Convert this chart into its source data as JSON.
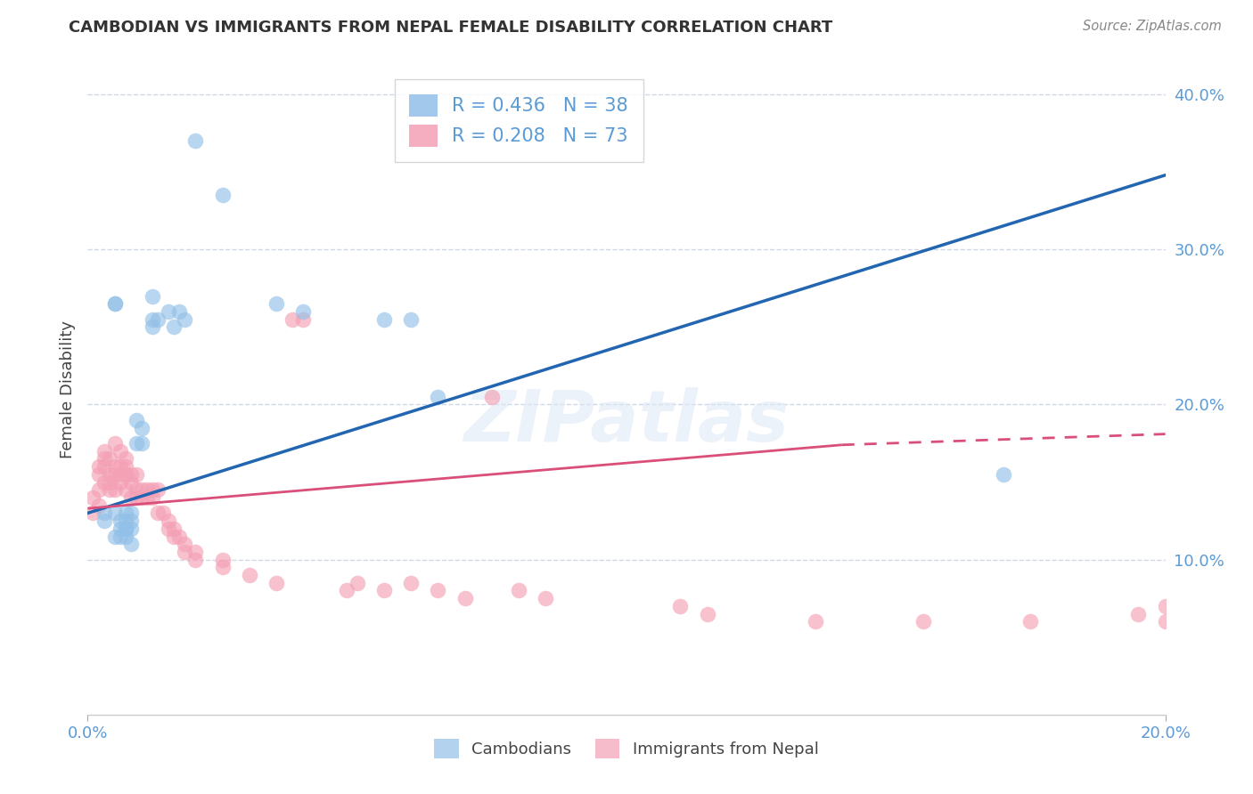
{
  "title": "CAMBODIAN VS IMMIGRANTS FROM NEPAL FEMALE DISABILITY CORRELATION CHART",
  "source": "Source: ZipAtlas.com",
  "ylabel": "Female Disability",
  "xlim": [
    0.0,
    0.2
  ],
  "ylim": [
    0.0,
    0.42
  ],
  "yticks": [
    0.1,
    0.2,
    0.3,
    0.4
  ],
  "xticks": [
    0.0,
    0.2
  ],
  "xtick_labels": [
    "0.0%",
    "20.0%"
  ],
  "ytick_labels": [
    "10.0%",
    "20.0%",
    "30.0%",
    "40.0%"
  ],
  "grid_yticks": [
    0.1,
    0.2,
    0.3,
    0.4
  ],
  "cambodian_color": "#92c0e8",
  "nepal_color": "#f4a0b5",
  "cambodian_line_color": "#2265b0",
  "nepal_line_color": "#d94f7a",
  "background_color": "#ffffff",
  "grid_color": "#d0d8e8",
  "cambodian_scatter": [
    [
      0.003,
      0.13
    ],
    [
      0.003,
      0.125
    ],
    [
      0.005,
      0.265
    ],
    [
      0.005,
      0.265
    ],
    [
      0.005,
      0.13
    ],
    [
      0.005,
      0.115
    ],
    [
      0.006,
      0.125
    ],
    [
      0.006,
      0.12
    ],
    [
      0.006,
      0.115
    ],
    [
      0.007,
      0.125
    ],
    [
      0.007,
      0.12
    ],
    [
      0.007,
      0.13
    ],
    [
      0.007,
      0.12
    ],
    [
      0.007,
      0.115
    ],
    [
      0.008,
      0.125
    ],
    [
      0.008,
      0.12
    ],
    [
      0.008,
      0.11
    ],
    [
      0.008,
      0.13
    ],
    [
      0.009,
      0.175
    ],
    [
      0.009,
      0.19
    ],
    [
      0.01,
      0.175
    ],
    [
      0.01,
      0.185
    ],
    [
      0.012,
      0.27
    ],
    [
      0.012,
      0.255
    ],
    [
      0.012,
      0.25
    ],
    [
      0.013,
      0.255
    ],
    [
      0.015,
      0.26
    ],
    [
      0.016,
      0.25
    ],
    [
      0.017,
      0.26
    ],
    [
      0.018,
      0.255
    ],
    [
      0.02,
      0.37
    ],
    [
      0.025,
      0.335
    ],
    [
      0.035,
      0.265
    ],
    [
      0.04,
      0.26
    ],
    [
      0.055,
      0.255
    ],
    [
      0.06,
      0.255
    ],
    [
      0.065,
      0.205
    ],
    [
      0.17,
      0.155
    ]
  ],
  "nepal_scatter": [
    [
      0.001,
      0.13
    ],
    [
      0.001,
      0.14
    ],
    [
      0.002,
      0.155
    ],
    [
      0.002,
      0.16
    ],
    [
      0.002,
      0.145
    ],
    [
      0.002,
      0.135
    ],
    [
      0.003,
      0.15
    ],
    [
      0.003,
      0.16
    ],
    [
      0.003,
      0.165
    ],
    [
      0.003,
      0.17
    ],
    [
      0.004,
      0.145
    ],
    [
      0.004,
      0.15
    ],
    [
      0.004,
      0.155
    ],
    [
      0.004,
      0.165
    ],
    [
      0.005,
      0.145
    ],
    [
      0.005,
      0.155
    ],
    [
      0.005,
      0.16
    ],
    [
      0.005,
      0.175
    ],
    [
      0.006,
      0.15
    ],
    [
      0.006,
      0.155
    ],
    [
      0.006,
      0.16
    ],
    [
      0.006,
      0.17
    ],
    [
      0.007,
      0.145
    ],
    [
      0.007,
      0.155
    ],
    [
      0.007,
      0.16
    ],
    [
      0.007,
      0.165
    ],
    [
      0.008,
      0.15
    ],
    [
      0.008,
      0.155
    ],
    [
      0.008,
      0.14
    ],
    [
      0.009,
      0.155
    ],
    [
      0.009,
      0.145
    ],
    [
      0.009,
      0.14
    ],
    [
      0.01,
      0.145
    ],
    [
      0.01,
      0.14
    ],
    [
      0.011,
      0.145
    ],
    [
      0.011,
      0.14
    ],
    [
      0.012,
      0.145
    ],
    [
      0.012,
      0.14
    ],
    [
      0.013,
      0.145
    ],
    [
      0.013,
      0.13
    ],
    [
      0.014,
      0.13
    ],
    [
      0.015,
      0.125
    ],
    [
      0.015,
      0.12
    ],
    [
      0.016,
      0.12
    ],
    [
      0.016,
      0.115
    ],
    [
      0.017,
      0.115
    ],
    [
      0.018,
      0.11
    ],
    [
      0.018,
      0.105
    ],
    [
      0.02,
      0.105
    ],
    [
      0.02,
      0.1
    ],
    [
      0.025,
      0.1
    ],
    [
      0.025,
      0.095
    ],
    [
      0.03,
      0.09
    ],
    [
      0.035,
      0.085
    ],
    [
      0.038,
      0.255
    ],
    [
      0.04,
      0.255
    ],
    [
      0.048,
      0.08
    ],
    [
      0.05,
      0.085
    ],
    [
      0.055,
      0.08
    ],
    [
      0.06,
      0.085
    ],
    [
      0.065,
      0.08
    ],
    [
      0.07,
      0.075
    ],
    [
      0.075,
      0.205
    ],
    [
      0.08,
      0.08
    ],
    [
      0.085,
      0.075
    ],
    [
      0.11,
      0.07
    ],
    [
      0.115,
      0.065
    ],
    [
      0.135,
      0.06
    ],
    [
      0.155,
      0.06
    ],
    [
      0.175,
      0.06
    ],
    [
      0.195,
      0.065
    ],
    [
      0.2,
      0.06
    ],
    [
      0.2,
      0.07
    ]
  ],
  "cambodian_R": 0.436,
  "nepal_R": 0.208,
  "cambodian_N": 38,
  "nepal_N": 73
}
